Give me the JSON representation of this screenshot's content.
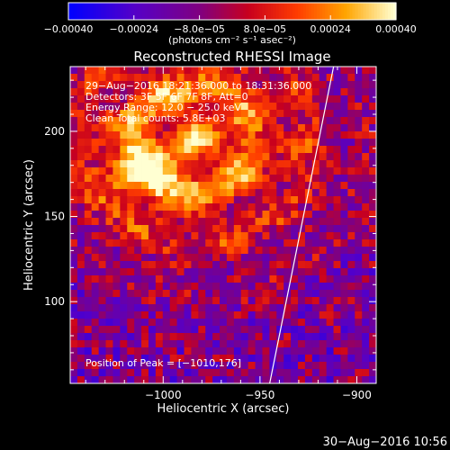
{
  "chart_data": {
    "type": "heatmap",
    "title": "Reconstructed RHESSI Image",
    "xlabel": "Heliocentric X (arcsec)",
    "ylabel": "Heliocentric Y (arcsec)",
    "xlim": [
      -1048,
      -890
    ],
    "ylim": [
      52,
      238
    ],
    "x_ticks": [
      {
        "value": -1000,
        "label": "−1000"
      },
      {
        "value": -950,
        "label": "−950"
      },
      {
        "value": -900,
        "label": "−900"
      }
    ],
    "y_ticks": [
      {
        "value": 100,
        "label": "100"
      },
      {
        "value": 150,
        "label": "150"
      },
      {
        "value": 200,
        "label": "200"
      }
    ],
    "colorbar": {
      "range": [
        -0.0004,
        0.0004
      ],
      "ticks": [
        {
          "value": -0.0004,
          "label": "−0.00040"
        },
        {
          "value": -0.00024,
          "label": "−0.00024"
        },
        {
          "value": -8e-05,
          "label": "−8.0e−05"
        },
        {
          "value": 8e-05,
          "label": "8.0e−05"
        },
        {
          "value": 0.00024,
          "label": "0.00024"
        },
        {
          "value": 0.0004,
          "label": "0.00040"
        }
      ],
      "units_label": "(photons cm⁻² s⁻¹ asec⁻²)"
    },
    "annotations": [
      "29−Aug−2016 18:21:36.000 to 18:31:36.000",
      "Detectors: 3F 5F 6F 7F 8F, Att=0",
      "Energy Range: 12.0 − 25.0 keV",
      "Clean     Total counts: 5.8E+03"
    ],
    "peak_label": "Position of Peak = [−1010,176]",
    "peak": [
      -1010,
      176
    ],
    "source_center": [
      -985,
      195
    ],
    "limb_line": [
      [
        -945,
        52
      ],
      [
        -912,
        238
      ]
    ],
    "grid": false
  },
  "footer": {
    "timestamp": "30−Aug−2016 10:56"
  }
}
